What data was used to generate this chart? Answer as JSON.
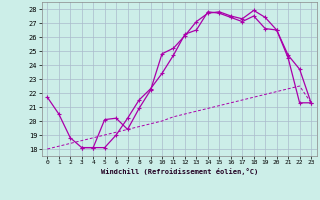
{
  "xlabel": "Windchill (Refroidissement éolien,°C)",
  "bg_color": "#cceee8",
  "grid_color": "#aabbcc",
  "line_color": "#aa00aa",
  "xlim": [
    -0.5,
    23.5
  ],
  "ylim": [
    17.5,
    28.5
  ],
  "yticks": [
    18,
    19,
    20,
    21,
    22,
    23,
    24,
    25,
    26,
    27,
    28
  ],
  "xticks": [
    0,
    1,
    2,
    3,
    4,
    5,
    6,
    7,
    8,
    9,
    10,
    11,
    12,
    13,
    14,
    15,
    16,
    17,
    18,
    19,
    20,
    21,
    22,
    23
  ],
  "line1_x": [
    0,
    1,
    2,
    3,
    4,
    5,
    6,
    7,
    8,
    9,
    10,
    11,
    12,
    13,
    14,
    15,
    16,
    17,
    18,
    19,
    20,
    21,
    22,
    23
  ],
  "line1_y": [
    21.7,
    20.5,
    18.8,
    18.1,
    18.1,
    20.1,
    20.2,
    19.4,
    20.9,
    22.2,
    24.8,
    25.2,
    26.1,
    27.1,
    27.7,
    27.8,
    27.5,
    27.3,
    27.9,
    27.4,
    26.5,
    24.7,
    23.7,
    21.3
  ],
  "line2_x": [
    3,
    4,
    5,
    6,
    7,
    8,
    9,
    10,
    11,
    12,
    13,
    14,
    15,
    16,
    17,
    18,
    19,
    20,
    21,
    22,
    23
  ],
  "line2_y": [
    18.1,
    18.1,
    18.1,
    19.0,
    20.2,
    21.5,
    22.3,
    23.4,
    24.7,
    26.2,
    26.5,
    27.8,
    27.7,
    27.4,
    27.1,
    27.5,
    26.6,
    26.5,
    24.5,
    21.3,
    21.3
  ],
  "line3_x": [
    0,
    1,
    2,
    3,
    4,
    5,
    6,
    7,
    8,
    9,
    10,
    11,
    12,
    13,
    14,
    15,
    16,
    17,
    18,
    19,
    20,
    21,
    22,
    23
  ],
  "line3_y": [
    18.0,
    18.2,
    18.4,
    18.6,
    18.8,
    19.0,
    19.2,
    19.4,
    19.6,
    19.8,
    20.0,
    20.3,
    20.5,
    20.7,
    20.9,
    21.1,
    21.3,
    21.5,
    21.7,
    21.9,
    22.1,
    22.3,
    22.5,
    21.3
  ]
}
